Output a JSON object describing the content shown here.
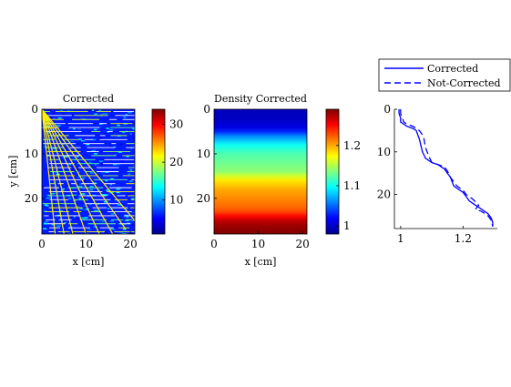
{
  "chart_data": [
    {
      "type": "heatmap",
      "title": "Corrected",
      "xlabel": "x [cm]",
      "ylabel": "y [cm]",
      "xlim": [
        0,
        21
      ],
      "ylim": [
        0,
        28
      ],
      "y_reversed": true,
      "xticks": [
        0,
        10,
        20
      ],
      "xtick_labels": [
        "0",
        "10",
        "20"
      ],
      "yticks": [
        0,
        10,
        20
      ],
      "ytick_labels": [
        "0",
        "10",
        "20"
      ],
      "colormap": "jet",
      "clim": [
        1,
        34
      ],
      "colorbar_ticks": [
        10,
        20,
        30
      ],
      "colorbar_tick_labels": [
        "10",
        "20",
        "30"
      ],
      "description_values": {
        "background_level": 6,
        "horizontal_streak_level": 16,
        "ray_origin": [
          0,
          0
        ],
        "ray_level": 22,
        "rays": [
          {
            "x_end": 3,
            "y_end": 28
          },
          {
            "x_end": 5,
            "y_end": 28
          },
          {
            "x_end": 7,
            "y_end": 28
          },
          {
            "x_end": 10,
            "y_end": 28
          },
          {
            "x_end": 13,
            "y_end": 28
          },
          {
            "x_end": 16,
            "y_end": 28
          },
          {
            "x_end": 19,
            "y_end": 27
          },
          {
            "x_end": 21,
            "y_end": 25
          }
        ]
      }
    },
    {
      "type": "heatmap",
      "title": "Density Corrected",
      "xlabel": "x [cm]",
      "ylabel": "",
      "xlim": [
        0,
        21
      ],
      "ylim": [
        0,
        28
      ],
      "y_reversed": true,
      "xticks": [
        0,
        10,
        20
      ],
      "xtick_labels": [
        "0",
        "10",
        "20"
      ],
      "yticks": [
        0,
        10,
        20
      ],
      "ytick_labels": [
        "0",
        "10",
        "20"
      ],
      "colormap": "jet",
      "clim": [
        0.98,
        1.29
      ],
      "colorbar_ticks": [
        1,
        1.1,
        1.2
      ],
      "colorbar_tick_labels": [
        "1",
        "1.1",
        "1.2"
      ],
      "profile_by_depth": {
        "y": [
          0,
          2,
          4,
          5,
          6,
          8,
          10,
          12,
          14,
          15,
          16,
          18,
          20,
          22,
          23,
          24,
          25,
          26,
          28
        ],
        "value": [
          1.0,
          1.0,
          1.01,
          1.03,
          1.06,
          1.1,
          1.12,
          1.13,
          1.14,
          1.16,
          1.18,
          1.2,
          1.21,
          1.22,
          1.23,
          1.25,
          1.27,
          1.28,
          1.29
        ]
      }
    },
    {
      "type": "line",
      "title": "",
      "xlabel": "",
      "ylabel": "",
      "xlim": [
        0.98,
        1.31
      ],
      "ylim": [
        0,
        28
      ],
      "y_reversed": true,
      "xticks": [
        1,
        1.2
      ],
      "xtick_labels": [
        "1",
        "1.2"
      ],
      "yticks": [
        0,
        10,
        20
      ],
      "ytick_labels": [
        "0",
        "10",
        "20"
      ],
      "legend_position": "above-right",
      "series": [
        {
          "name": "Corrected",
          "style": "solid",
          "color": "#0000ff",
          "x": [
            0.995,
            0.995,
            1.0,
            1.0,
            1.01,
            1.02,
            1.04,
            1.05,
            1.055,
            1.06,
            1.065,
            1.07,
            1.08,
            1.1,
            1.12,
            1.13,
            1.14,
            1.15,
            1.16,
            1.165,
            1.17,
            1.18,
            1.19,
            1.2,
            1.21,
            1.22,
            1.24,
            1.25,
            1.26,
            1.27,
            1.28,
            1.29,
            1.295,
            1.295
          ],
          "y": [
            0,
            1,
            2,
            3,
            3.5,
            4,
            4.5,
            5,
            6,
            7,
            8.5,
            10,
            11.5,
            12.5,
            13,
            13.5,
            14,
            15,
            16,
            17,
            18,
            18.5,
            19,
            19.5,
            20.5,
            21.5,
            22.5,
            23,
            23.5,
            24,
            24.5,
            25.5,
            26.5,
            27.5
          ]
        },
        {
          "name": "Not-Corrected",
          "style": "dashed",
          "color": "#0000ff",
          "x": [
            1.0,
            1.0,
            1.005,
            1.01,
            1.02,
            1.04,
            1.06,
            1.07,
            1.075,
            1.08,
            1.09,
            1.1,
            1.12,
            1.14,
            1.15,
            1.16,
            1.17,
            1.18,
            1.2,
            1.21,
            1.23,
            1.25,
            1.24,
            1.26,
            1.28,
            1.29,
            1.295
          ],
          "y": [
            0,
            1,
            2,
            3,
            3.5,
            4,
            5,
            6,
            7,
            9,
            11,
            12.5,
            13,
            13.5,
            14.5,
            16,
            17,
            18,
            19,
            20,
            21,
            22.5,
            23.5,
            24,
            25,
            26,
            27.5
          ]
        }
      ]
    }
  ]
}
